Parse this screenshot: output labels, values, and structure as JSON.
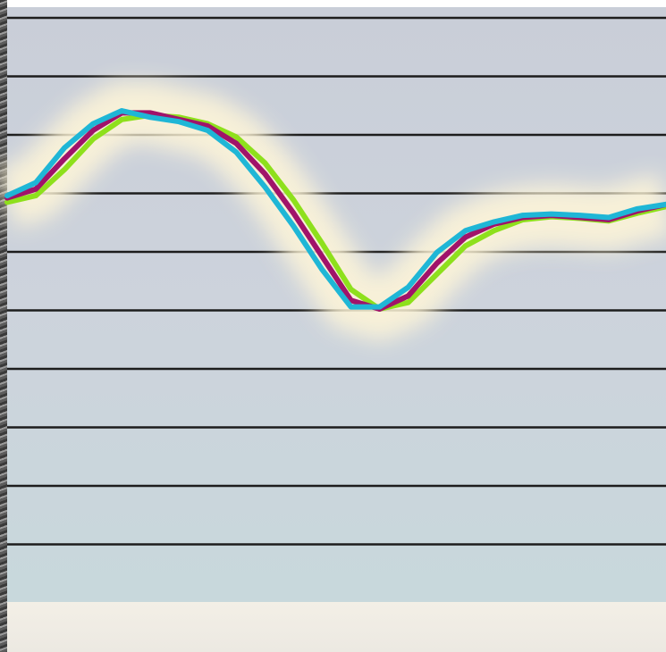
{
  "chart_data": {
    "type": "line",
    "title": "",
    "xlabel": "",
    "ylabel": "",
    "grid": true,
    "gridline_count": 10,
    "x": [
      0,
      1,
      2,
      3,
      4,
      5,
      6,
      7,
      8,
      9,
      10,
      11,
      12,
      13,
      14,
      15,
      16,
      17,
      18,
      19,
      20,
      21,
      22,
      23
    ],
    "xlim": [
      0,
      23
    ],
    "ylim": [
      0,
      10
    ],
    "series": [
      {
        "color": "#1fb6d6",
        "values": [
          6.2,
          6.5,
          7.3,
          7.85,
          8.15,
          8.0,
          7.9,
          7.7,
          7.2,
          6.4,
          5.5,
          4.5,
          3.65,
          3.65,
          4.1,
          4.9,
          5.4,
          5.6,
          5.75,
          5.78,
          5.75,
          5.7,
          5.9,
          6.0
        ]
      },
      {
        "color": "#a0136a",
        "values": [
          6.15,
          6.35,
          7.05,
          7.7,
          8.1,
          8.1,
          7.95,
          7.8,
          7.4,
          6.7,
          5.8,
          4.8,
          3.8,
          3.6,
          3.9,
          4.65,
          5.25,
          5.55,
          5.7,
          5.75,
          5.7,
          5.65,
          5.85,
          6.0
        ]
      },
      {
        "color": "#8ee01c",
        "values": [
          6.05,
          6.2,
          6.8,
          7.5,
          7.95,
          8.05,
          8.0,
          7.85,
          7.55,
          6.95,
          6.1,
          5.1,
          4.05,
          3.6,
          3.75,
          4.4,
          5.05,
          5.4,
          5.65,
          5.72,
          5.68,
          5.62,
          5.8,
          5.95
        ]
      }
    ]
  }
}
